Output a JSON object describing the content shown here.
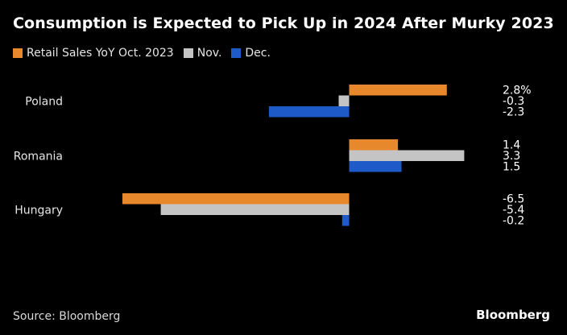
{
  "chart_data": {
    "type": "bar",
    "orientation": "horizontal",
    "title": "Consumption is Expected to Pick Up in 2024 After Murky 2023",
    "categories": [
      "Poland",
      "Romania",
      "Hungary"
    ],
    "series": [
      {
        "name": "Retail Sales YoY Oct. 2023",
        "color": "#e6882b",
        "values": [
          2.8,
          1.4,
          -6.5
        ],
        "labels": [
          "2.8%",
          "1.4",
          "-6.5"
        ]
      },
      {
        "name": "Nov.",
        "color": "#c4c4c4",
        "values": [
          -0.3,
          3.3,
          -5.4
        ],
        "labels": [
          "-0.3",
          "3.3",
          "-5.4"
        ]
      },
      {
        "name": "Dec.",
        "color": "#1e5ac8",
        "values": [
          -2.3,
          1.5,
          -0.2
        ],
        "labels": [
          "-2.3",
          "1.5",
          "-0.2"
        ]
      }
    ],
    "xlim": [
      -6.5,
      3.3
    ],
    "legend_position": "top-left",
    "grid": false
  },
  "footer": {
    "source": "Source: Bloomberg",
    "brand": "Bloomberg"
  }
}
